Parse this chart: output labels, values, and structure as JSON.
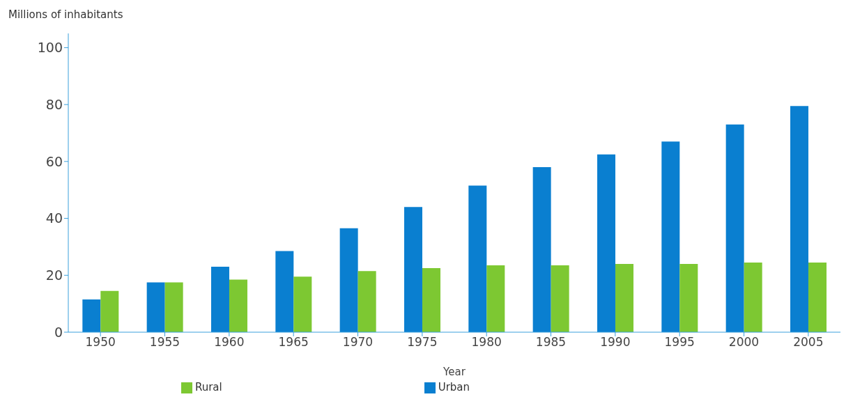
{
  "chart_data": {
    "type": "bar",
    "ylabel": "Millions of inhabitants",
    "xlabel": "Year",
    "categories": [
      "1950",
      "1955",
      "1960",
      "1965",
      "1970",
      "1975",
      "1980",
      "1985",
      "1990",
      "1995",
      "2000",
      "2005"
    ],
    "series": [
      {
        "name": "Urban",
        "color": "#0a7fd0",
        "values": [
          11.5,
          17.5,
          23,
          28.5,
          36.5,
          44,
          51.5,
          58,
          62.5,
          67,
          73,
          79.5
        ]
      },
      {
        "name": "Rural",
        "color": "#7dc832",
        "values": [
          14.5,
          17.5,
          18.5,
          19.5,
          21.5,
          22.5,
          23.5,
          23.5,
          24,
          24,
          24.5,
          24.5
        ]
      }
    ],
    "ylim": [
      0,
      105
    ],
    "yticks": [
      0,
      20,
      40,
      60,
      80,
      100
    ],
    "grid": false,
    "legend": "bottom"
  }
}
